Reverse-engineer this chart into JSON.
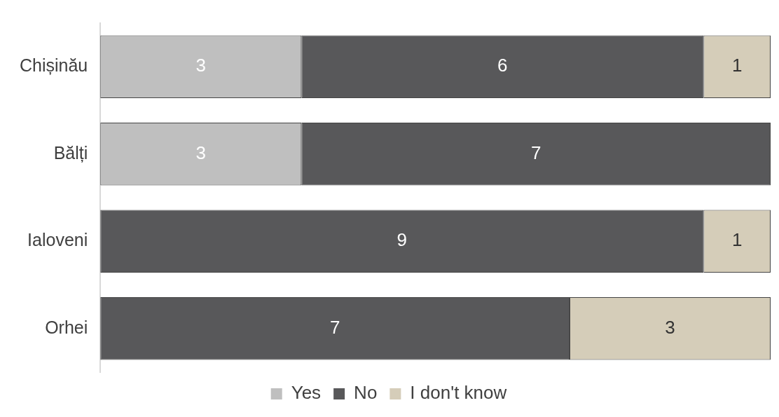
{
  "chart_data": {
    "type": "bar",
    "orientation": "horizontal",
    "stacked": true,
    "categories": [
      "Chișinău",
      "Bălți",
      "Ialoveni",
      "Orhei"
    ],
    "series": [
      {
        "name": "Yes",
        "color": "#bfbfbf",
        "values": [
          3,
          3,
          null,
          null
        ]
      },
      {
        "name": "No",
        "color": "#58585a",
        "values": [
          6,
          7,
          9,
          7
        ]
      },
      {
        "name": "I don't know",
        "color": "#d5cdb9",
        "values": [
          1,
          null,
          1,
          3
        ]
      }
    ],
    "data_labels": true,
    "legend": "bottom",
    "grid": false
  }
}
